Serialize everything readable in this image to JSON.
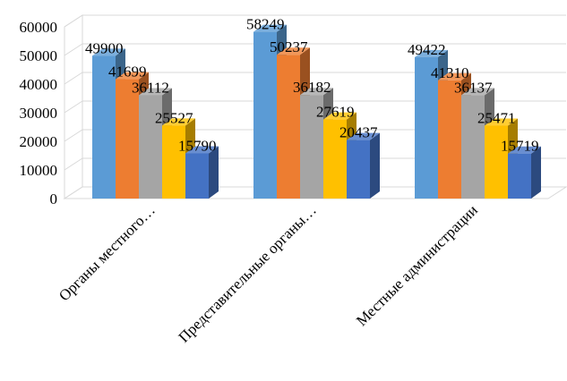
{
  "chart_data": {
    "type": "bar",
    "style": "3d-clustered-column",
    "categories": [
      "Органы местного…",
      "Представительные органы…",
      "Местные администрации"
    ],
    "series": [
      {
        "values": [
          49900,
          58249,
          49422
        ],
        "color": "#5B9BD5"
      },
      {
        "values": [
          41699,
          50237,
          41310
        ],
        "color": "#ED7D31"
      },
      {
        "values": [
          36112,
          36182,
          36137
        ],
        "color": "#A5A5A5"
      },
      {
        "values": [
          25527,
          27619,
          25471
        ],
        "color": "#FFC000"
      },
      {
        "values": [
          15790,
          20437,
          15719
        ],
        "color": "#4472C4"
      }
    ],
    "yticks": [
      "0",
      "10000",
      "20000",
      "30000",
      "40000",
      "50000",
      "60000"
    ],
    "ylim": [
      0,
      60000
    ],
    "grid": true,
    "legend": "none"
  }
}
